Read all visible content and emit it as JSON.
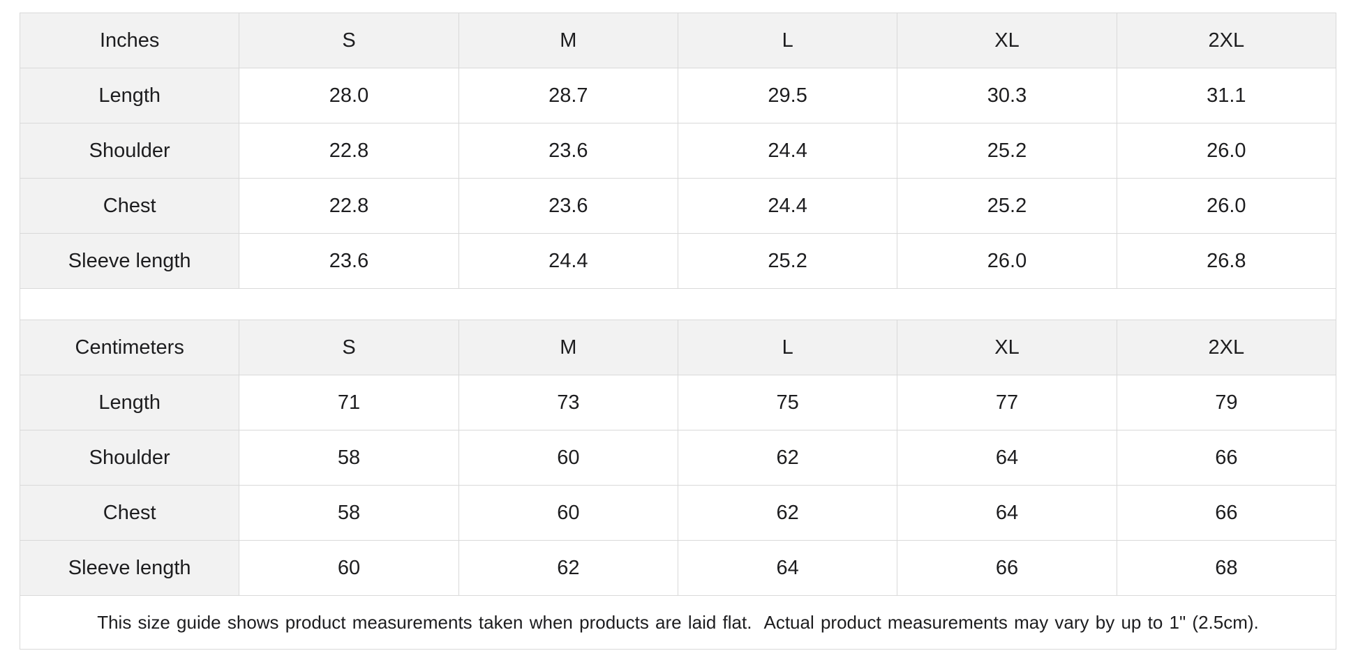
{
  "colors": {
    "page_background": "#ffffff",
    "header_cell_background": "#f2f2f2",
    "data_cell_background": "#ffffff",
    "border": "#d9d9d9",
    "text": "#1d1d1f"
  },
  "tables": [
    {
      "unit_label": "Inches",
      "sizes": [
        "S",
        "M",
        "L",
        "XL",
        "2XL"
      ],
      "rows": [
        {
          "label": "Length",
          "values": [
            "28.0",
            "28.7",
            "29.5",
            "30.3",
            "31.1"
          ]
        },
        {
          "label": "Shoulder",
          "values": [
            "22.8",
            "23.6",
            "24.4",
            "25.2",
            "26.0"
          ]
        },
        {
          "label": "Chest",
          "values": [
            "22.8",
            "23.6",
            "24.4",
            "25.2",
            "26.0"
          ]
        },
        {
          "label": "Sleeve length",
          "values": [
            "23.6",
            "24.4",
            "25.2",
            "26.0",
            "26.8"
          ]
        }
      ]
    },
    {
      "unit_label": "Centimeters",
      "sizes": [
        "S",
        "M",
        "L",
        "XL",
        "2XL"
      ],
      "rows": [
        {
          "label": "Length",
          "values": [
            "71",
            "73",
            "75",
            "77",
            "79"
          ]
        },
        {
          "label": "Shoulder",
          "values": [
            "58",
            "60",
            "62",
            "64",
            "66"
          ]
        },
        {
          "label": "Chest",
          "values": [
            "58",
            "60",
            "62",
            "64",
            "66"
          ]
        },
        {
          "label": "Sleeve length",
          "values": [
            "60",
            "62",
            "64",
            "66",
            "68"
          ]
        }
      ]
    }
  ],
  "footer": {
    "note": "This size guide shows product measurements taken when products are laid flat.  Actual product measurements may vary by up to 1\" (2.5cm)."
  }
}
